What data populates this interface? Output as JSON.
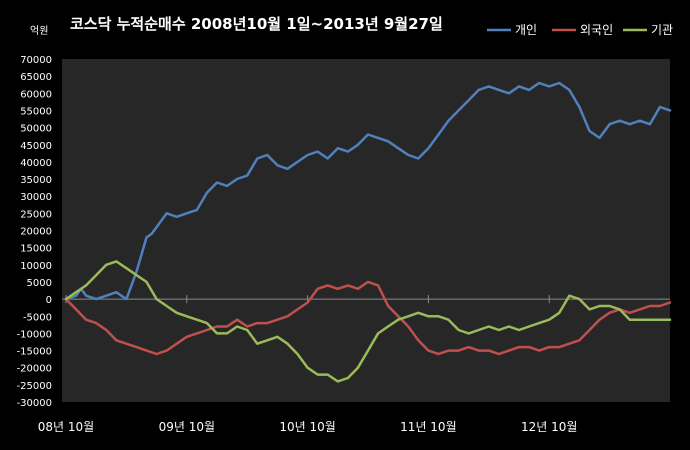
{
  "chart_data": {
    "type": "line",
    "title": "코스닥 누적순매수 2008년10월 1일~2013년 9월27일",
    "unit_label": "억원",
    "ylim": [
      -30000,
      70000
    ],
    "y_ticks": [
      70000,
      65000,
      60000,
      55000,
      50000,
      45000,
      40000,
      35000,
      30000,
      25000,
      20000,
      15000,
      10000,
      5000,
      0,
      -5000,
      -10000,
      -15000,
      -20000,
      -25000,
      -30000
    ],
    "x_tick_labels": [
      "08년 10월",
      "09년 10월",
      "10년 10월",
      "11년 10월",
      "12년 10월"
    ],
    "xlim": [
      0,
      60
    ],
    "x_ticks": [
      0,
      12,
      24,
      36,
      48
    ],
    "grid": false,
    "legend_position": "top-right",
    "colors": {
      "background": "#000000",
      "plot_background": "#272727",
      "axis": "#8c8c8c"
    },
    "series": [
      {
        "name": "개인",
        "color": "#4f81bd",
        "x": [
          0,
          1,
          1.5,
          2,
          3,
          4,
          5,
          6,
          7,
          8,
          8.5,
          9,
          9.5,
          10,
          11,
          12,
          13,
          14,
          15,
          16,
          17,
          18,
          19,
          20,
          21,
          22,
          23,
          24,
          25,
          26,
          27,
          28,
          29,
          30,
          31,
          32,
          33,
          34,
          35,
          36,
          37,
          38,
          39,
          40,
          41,
          42,
          43,
          44,
          45,
          46,
          47,
          48,
          49,
          50,
          51,
          52,
          53,
          54,
          55,
          56,
          57,
          58,
          59,
          60
        ],
        "y": [
          0,
          1000,
          3000,
          1000,
          0,
          1000,
          2000,
          0,
          8000,
          18000,
          19000,
          21000,
          23000,
          25000,
          24000,
          25000,
          26000,
          31000,
          34000,
          33000,
          35000,
          36000,
          41000,
          42000,
          39000,
          38000,
          40000,
          42000,
          43000,
          41000,
          44000,
          43000,
          45000,
          48000,
          47000,
          46000,
          44000,
          42000,
          41000,
          44000,
          48000,
          52000,
          55000,
          58000,
          61000,
          62000,
          61000,
          60000,
          62000,
          61000,
          63000,
          62000,
          63000,
          61000,
          56000,
          49000,
          47000,
          51000,
          52000,
          51000,
          52000,
          51000,
          56000,
          55000
        ]
      },
      {
        "name": "외국인",
        "color": "#c0504d",
        "x": [
          0,
          1,
          2,
          3,
          4,
          5,
          6,
          7,
          8,
          9,
          10,
          11,
          12,
          13,
          14,
          15,
          16,
          17,
          18,
          19,
          20,
          21,
          22,
          23,
          24,
          25,
          26,
          27,
          28,
          29,
          30,
          31,
          32,
          33,
          34,
          35,
          36,
          37,
          38,
          39,
          40,
          41,
          42,
          43,
          44,
          45,
          46,
          47,
          48,
          49,
          50,
          51,
          52,
          53,
          54,
          55,
          56,
          57,
          58,
          59,
          60
        ],
        "y": [
          0,
          -3000,
          -6000,
          -7000,
          -9000,
          -12000,
          -13000,
          -14000,
          -15000,
          -16000,
          -15000,
          -13000,
          -11000,
          -10000,
          -9000,
          -8000,
          -8000,
          -6000,
          -8000,
          -7000,
          -7000,
          -6000,
          -5000,
          -3000,
          -1000,
          3000,
          4000,
          3000,
          4000,
          3000,
          5000,
          4000,
          -2000,
          -5000,
          -8000,
          -12000,
          -15000,
          -16000,
          -15000,
          -15000,
          -14000,
          -15000,
          -15000,
          -16000,
          -15000,
          -14000,
          -14000,
          -15000,
          -14000,
          -14000,
          -13000,
          -12000,
          -9000,
          -6000,
          -4000,
          -3000,
          -4000,
          -3000,
          -2000,
          -2000,
          -1000
        ]
      },
      {
        "name": "기관",
        "color": "#9bbb59",
        "x": [
          0,
          1,
          2,
          3,
          4,
          5,
          6,
          7,
          8,
          9,
          10,
          11,
          12,
          13,
          14,
          15,
          16,
          17,
          18,
          19,
          20,
          21,
          22,
          23,
          24,
          25,
          26,
          27,
          28,
          29,
          30,
          31,
          32,
          33,
          34,
          35,
          36,
          37,
          38,
          39,
          40,
          41,
          42,
          43,
          44,
          45,
          46,
          47,
          48,
          49,
          50,
          51,
          52,
          53,
          54,
          55,
          56,
          57,
          58,
          59,
          60
        ],
        "y": [
          0,
          2000,
          4000,
          7000,
          10000,
          11000,
          9000,
          7000,
          5000,
          0,
          -2000,
          -4000,
          -5000,
          -6000,
          -7000,
          -10000,
          -10000,
          -8000,
          -9000,
          -13000,
          -12000,
          -11000,
          -13000,
          -16000,
          -20000,
          -22000,
          -22000,
          -24000,
          -23000,
          -20000,
          -15000,
          -10000,
          -8000,
          -6000,
          -5000,
          -4000,
          -5000,
          -5000,
          -6000,
          -9000,
          -10000,
          -9000,
          -8000,
          -9000,
          -8000,
          -9000,
          -8000,
          -7000,
          -6000,
          -4000,
          1000,
          0,
          -3000,
          -2000,
          -2000,
          -3000,
          -6000,
          -6000,
          -6000,
          -6000,
          -6000
        ]
      }
    ]
  }
}
